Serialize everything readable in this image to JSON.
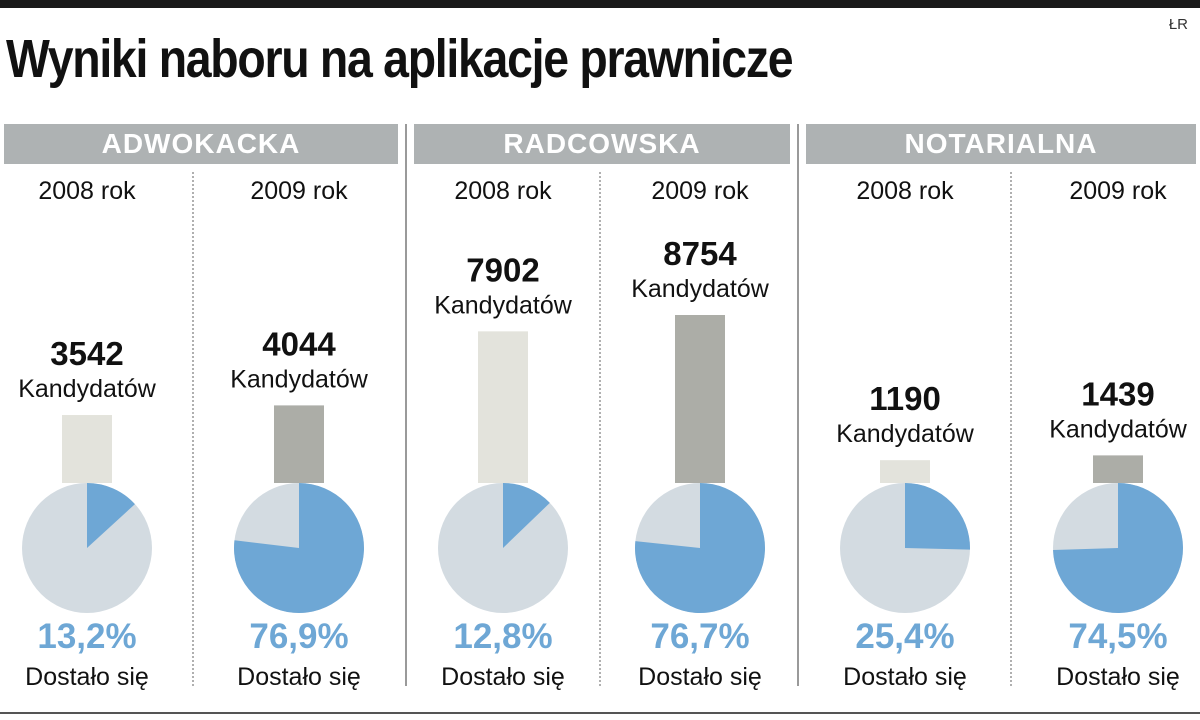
{
  "source": "ŁR",
  "chart_data": {
    "type": "bar+pie",
    "title": "Wyniki naboru na aplikacje prawnicze",
    "candidates_label": "Kandydatów",
    "admitted_label": "Dostało się",
    "groups": [
      {
        "name": "ADWOKACKA",
        "columns": [
          {
            "year_label": "2008 rok",
            "candidates": 3542,
            "candidates_text": "3542",
            "admitted_pct": 13.2,
            "admitted_text": "13,2%"
          },
          {
            "year_label": "2009 rok",
            "candidates": 4044,
            "candidates_text": "4044",
            "admitted_pct": 76.9,
            "admitted_text": "76,9%"
          }
        ]
      },
      {
        "name": "RADCOWSKA",
        "columns": [
          {
            "year_label": "2008 rok",
            "candidates": 7902,
            "candidates_text": "7902",
            "admitted_pct": 12.8,
            "admitted_text": "12,8%"
          },
          {
            "year_label": "2009 rok",
            "candidates": 8754,
            "candidates_text": "8754",
            "admitted_pct": 76.7,
            "admitted_text": "76,7%"
          }
        ]
      },
      {
        "name": "NOTARIALNA",
        "columns": [
          {
            "year_label": "2008 rok",
            "candidates": 1190,
            "candidates_text": "1190",
            "admitted_pct": 25.4,
            "admitted_text": "25,4%"
          },
          {
            "year_label": "2009 rok",
            "candidates": 1439,
            "candidates_text": "1439",
            "admitted_pct": 74.5,
            "admitted_text": "74,5%"
          }
        ]
      }
    ],
    "colors": {
      "bar_2008": "#e3e3dc",
      "bar_2009": "#acada7",
      "pie_base": "#d3dbe1",
      "pie_admitted": "#6ea7d5",
      "percent_text": "#6ea7d5",
      "header_bg": "#aeb2b3"
    }
  }
}
